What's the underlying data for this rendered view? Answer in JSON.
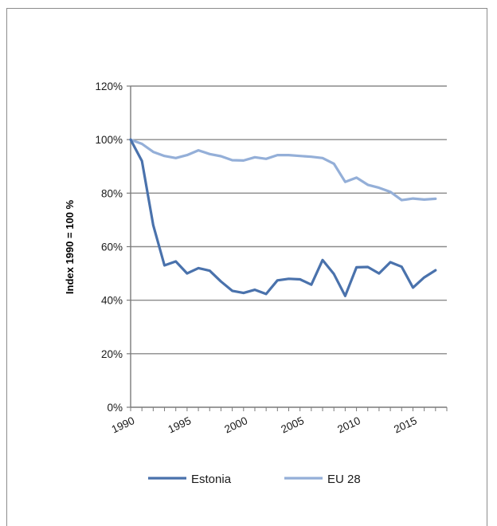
{
  "chart_data": {
    "type": "line",
    "title": "",
    "xlabel": "",
    "ylabel": "Index 1990 = 100 %",
    "xlim": [
      1990,
      2018
    ],
    "ylim": [
      0,
      120
    ],
    "y_ticks": [
      0,
      20,
      40,
      60,
      80,
      100,
      120
    ],
    "y_tick_labels": [
      "0%",
      "20%",
      "40%",
      "60%",
      "80%",
      "100%",
      "120%"
    ],
    "x_ticks": [
      1990,
      1995,
      2000,
      2005,
      2010,
      2015
    ],
    "x_tick_labels": [
      "1990",
      "1995",
      "2000",
      "2005",
      "2010",
      "2015"
    ],
    "grid": "horizontal",
    "legend_position": "bottom",
    "x": [
      1990,
      1991,
      1992,
      1993,
      1994,
      1995,
      1996,
      1997,
      1998,
      1999,
      2000,
      2001,
      2002,
      2003,
      2004,
      2005,
      2006,
      2007,
      2008,
      2009,
      2010,
      2011,
      2012,
      2013,
      2014,
      2015,
      2016,
      2017,
      2018
    ],
    "series": [
      {
        "name": "Estonia",
        "color": "#4a72ac",
        "values": [
          100,
          92,
          68,
          53,
          54.5,
          50,
          52,
          51,
          47,
          43.5,
          42.7,
          43.9,
          42.3,
          47.4,
          48,
          47.8,
          45.8,
          55,
          49.8,
          41.6,
          52.3,
          52.4,
          50,
          54.2,
          52.5,
          44.7,
          48.5,
          51.2,
          null
        ]
      },
      {
        "name": "EU 28",
        "color": "#94afd8",
        "values": [
          100,
          98.4,
          95.4,
          93.9,
          93.1,
          94.2,
          96,
          94.6,
          93.8,
          92.3,
          92.2,
          93.4,
          92.8,
          94.2,
          94.2,
          93.9,
          93.6,
          93.1,
          91,
          84.2,
          85.8,
          83.1,
          82,
          80.5,
          77.4,
          78,
          77.6,
          77.9,
          null
        ]
      }
    ]
  }
}
